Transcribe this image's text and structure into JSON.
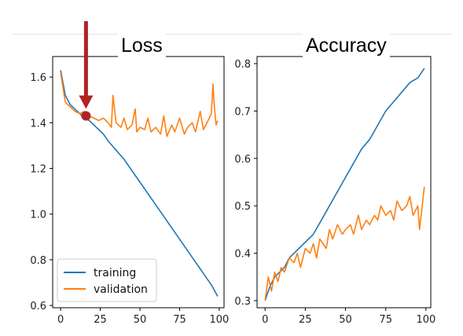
{
  "chart_data": [
    {
      "type": "line",
      "title": "Loss",
      "xlim": [
        -5,
        103
      ],
      "ylim": [
        0.59,
        1.69
      ],
      "xticks": [
        0,
        25,
        50,
        75,
        100
      ],
      "xtick_labels": [
        "0",
        "25",
        "50",
        "75",
        "100"
      ],
      "yticks": [
        0.6,
        0.8,
        1.0,
        1.2,
        1.4,
        1.6
      ],
      "ytick_labels": [
        "0.6",
        "0.8",
        "1.0",
        "1.2",
        "1.4",
        "1.6"
      ],
      "legend": "lower-left",
      "grid": false,
      "series": [
        {
          "name": "training",
          "color": "#1f77b4",
          "x": [
            0,
            3,
            6,
            9,
            12,
            15,
            18,
            21,
            24,
            27,
            30,
            35,
            40,
            45,
            50,
            55,
            60,
            65,
            70,
            75,
            80,
            85,
            90,
            95,
            99
          ],
          "y": [
            1.63,
            1.52,
            1.48,
            1.46,
            1.44,
            1.42,
            1.41,
            1.39,
            1.37,
            1.35,
            1.32,
            1.28,
            1.24,
            1.19,
            1.14,
            1.09,
            1.04,
            0.99,
            0.94,
            0.89,
            0.84,
            0.79,
            0.74,
            0.69,
            0.64
          ]
        },
        {
          "name": "validation",
          "color": "#ff7f0e",
          "x": [
            0,
            3,
            6,
            9,
            12,
            15,
            18,
            21,
            24,
            27,
            30,
            32,
            33,
            35,
            38,
            40,
            42,
            45,
            47,
            48,
            50,
            53,
            55,
            57,
            60,
            63,
            65,
            67,
            70,
            72,
            75,
            78,
            80,
            83,
            85,
            88,
            90,
            93,
            95,
            96,
            97,
            98,
            99
          ],
          "y": [
            1.62,
            1.49,
            1.47,
            1.45,
            1.44,
            1.45,
            1.43,
            1.42,
            1.41,
            1.42,
            1.4,
            1.38,
            1.52,
            1.4,
            1.38,
            1.42,
            1.37,
            1.39,
            1.46,
            1.36,
            1.38,
            1.37,
            1.42,
            1.36,
            1.38,
            1.35,
            1.43,
            1.34,
            1.39,
            1.36,
            1.42,
            1.35,
            1.38,
            1.4,
            1.36,
            1.45,
            1.37,
            1.41,
            1.44,
            1.57,
            1.46,
            1.39,
            1.41
          ]
        }
      ],
      "annotation": {
        "x": 16,
        "y": 1.43,
        "color": "#b22222"
      }
    },
    {
      "type": "line",
      "title": "Accuracy",
      "xlim": [
        -5,
        103
      ],
      "ylim": [
        0.285,
        0.815
      ],
      "xticks": [
        0,
        25,
        50,
        75,
        100
      ],
      "xtick_labels": [
        "0",
        "25",
        "50",
        "75",
        "100"
      ],
      "yticks": [
        0.3,
        0.4,
        0.5,
        0.6,
        0.7,
        0.8
      ],
      "ytick_labels": [
        "0.3",
        "0.4",
        "0.5",
        "0.6",
        "0.7",
        "0.8"
      ],
      "legend": "none",
      "grid": false,
      "series": [
        {
          "name": "training",
          "color": "#1f77b4",
          "x": [
            0,
            3,
            6,
            9,
            12,
            15,
            18,
            21,
            24,
            27,
            30,
            35,
            40,
            45,
            50,
            55,
            60,
            65,
            70,
            75,
            80,
            85,
            90,
            95,
            99
          ],
          "y": [
            0.3,
            0.33,
            0.35,
            0.36,
            0.37,
            0.39,
            0.4,
            0.41,
            0.42,
            0.43,
            0.44,
            0.47,
            0.5,
            0.53,
            0.56,
            0.59,
            0.62,
            0.64,
            0.67,
            0.7,
            0.72,
            0.74,
            0.76,
            0.77,
            0.79
          ]
        },
        {
          "name": "validation",
          "color": "#ff7f0e",
          "x": [
            0,
            2,
            4,
            6,
            8,
            10,
            12,
            15,
            18,
            20,
            22,
            25,
            28,
            30,
            32,
            34,
            36,
            38,
            40,
            42,
            45,
            48,
            50,
            53,
            55,
            58,
            60,
            63,
            65,
            68,
            70,
            72,
            75,
            78,
            80,
            82,
            85,
            88,
            90,
            92,
            95,
            96,
            98,
            99
          ],
          "y": [
            0.3,
            0.35,
            0.32,
            0.36,
            0.34,
            0.37,
            0.36,
            0.39,
            0.38,
            0.4,
            0.37,
            0.41,
            0.4,
            0.42,
            0.39,
            0.43,
            0.42,
            0.41,
            0.45,
            0.43,
            0.46,
            0.44,
            0.45,
            0.46,
            0.44,
            0.48,
            0.45,
            0.47,
            0.46,
            0.48,
            0.47,
            0.5,
            0.48,
            0.49,
            0.47,
            0.51,
            0.49,
            0.5,
            0.52,
            0.48,
            0.5,
            0.45,
            0.51,
            0.54
          ]
        }
      ]
    }
  ]
}
